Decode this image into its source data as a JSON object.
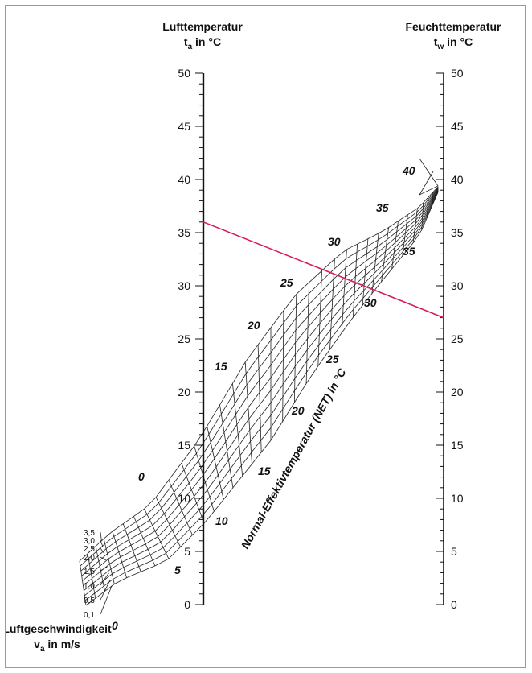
{
  "chart_data": {
    "type": "nomogram",
    "left_axis": {
      "title": "Lufttemperatur",
      "label_main": "t",
      "label_sub": "a",
      "label_rest": " in °C",
      "range": [
        0,
        50
      ],
      "ticks": [
        "0",
        "5",
        "10",
        "15",
        "20",
        "25",
        "30",
        "35",
        "40",
        "45",
        "50"
      ]
    },
    "right_axis": {
      "title": "Feuchttemperatur",
      "label_main": "t",
      "label_sub": "w",
      "label_rest": " in °C",
      "range": [
        0,
        50
      ],
      "ticks": [
        "0",
        "5",
        "10",
        "15",
        "20",
        "25",
        "30",
        "35",
        "40",
        "45",
        "50"
      ]
    },
    "speed_axis": {
      "title": "Luftgeschwindigkeit",
      "label_main": "v",
      "label_sub": "a",
      "label_rest": " in m/s",
      "values": [
        "0,1",
        "0,5",
        "1,0",
        "1,5",
        "2,0",
        "2,5",
        "3,0",
        "3,5"
      ]
    },
    "net_axis": {
      "title": "Normal-Effektivtemperatur (NET) in °C",
      "upper_labels": [
        "0",
        "15",
        "20",
        "25",
        "30",
        "35",
        "40"
      ],
      "lower_labels": [
        "0",
        "5",
        "10",
        "15",
        "20",
        "25",
        "30",
        "35"
      ]
    },
    "example_line": {
      "left_value": 36,
      "right_value": 27,
      "color": "#d81b5a"
    },
    "colors": {
      "ink": "#111111",
      "grid": "#222222",
      "frame": "#9a9a9a"
    }
  }
}
